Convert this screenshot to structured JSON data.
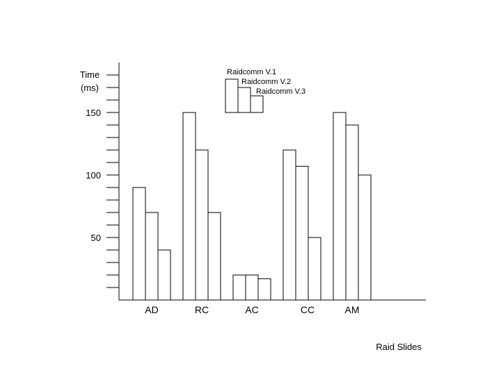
{
  "chart_data": {
    "type": "bar",
    "title": "",
    "ylabel": "Time\n(ms)",
    "xlabel": "Raid Slides",
    "categories": [
      "AD",
      "RC",
      "AC",
      "CC",
      "AM"
    ],
    "series": [
      {
        "name": "Raidcomm V.1",
        "values": [
          90,
          150,
          20,
          120,
          150
        ]
      },
      {
        "name": "Raidcomm V.2",
        "values": [
          70,
          120,
          20,
          107,
          140
        ]
      },
      {
        "name": "Raidcomm V.3",
        "values": [
          40,
          70,
          17,
          50,
          100
        ]
      }
    ],
    "ylim": [
      0,
      150
    ],
    "y_tick_labels": [
      "50",
      "100",
      "150"
    ],
    "y_tick_values": [
      50,
      100,
      150
    ],
    "minor_tick_step": 10,
    "grid": false,
    "legend_position": "top-center",
    "bar_fill": "#ffffff",
    "bar_stroke": "#000000"
  }
}
